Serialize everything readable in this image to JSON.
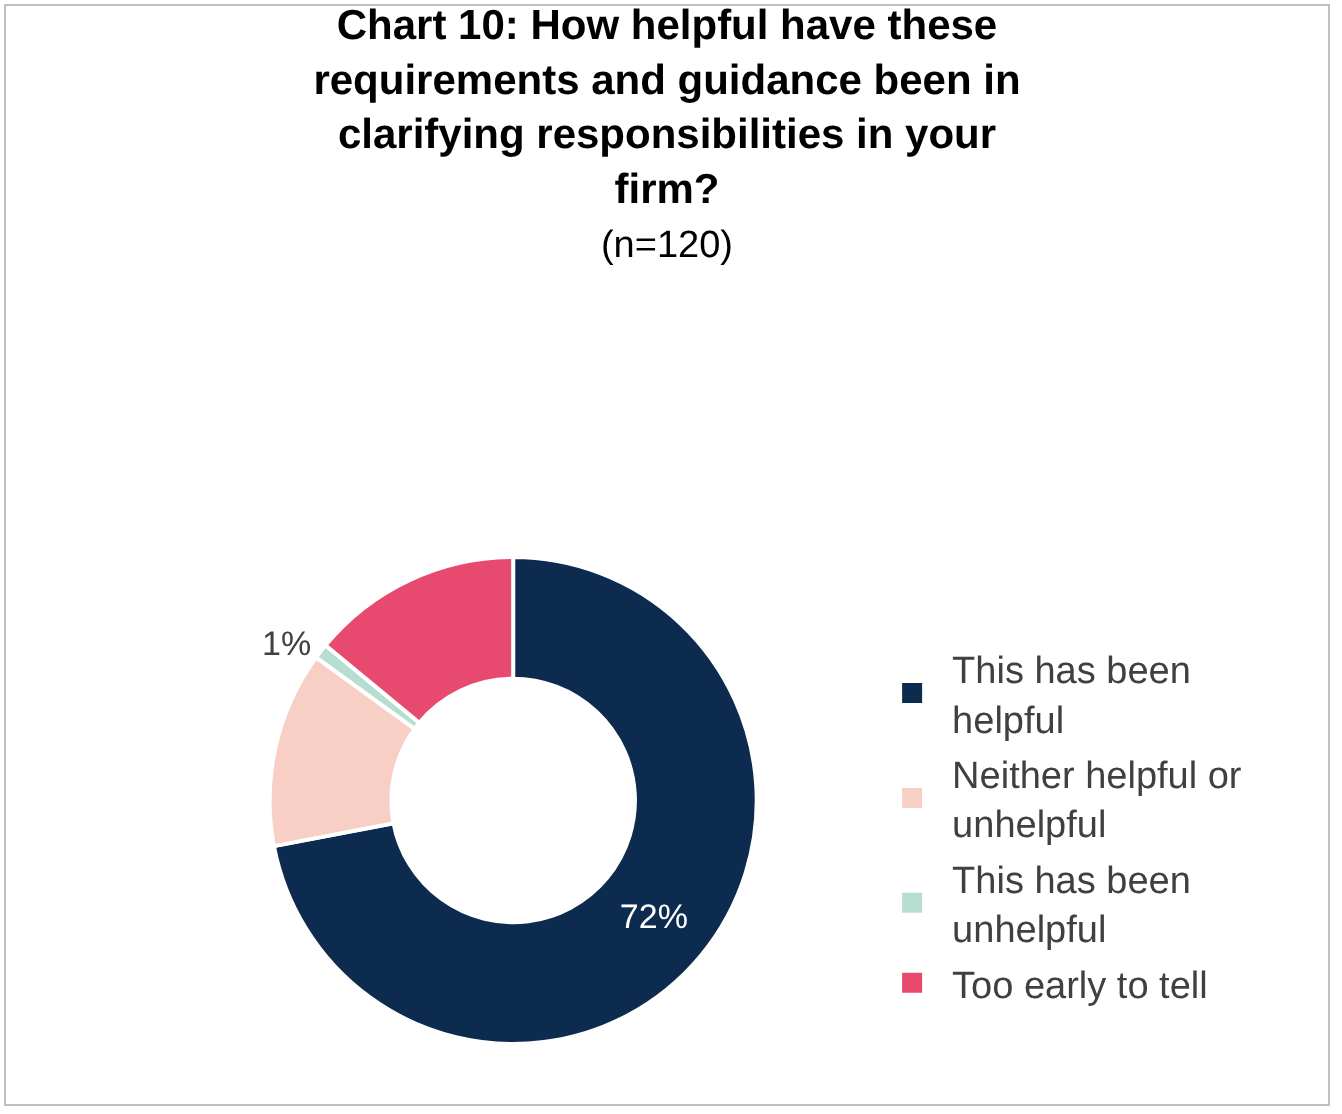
{
  "chart_data": {
    "type": "donut",
    "title": "Chart 10: How helpful have these requirements and guidance been in clarifying responsibilities in your firm?",
    "subtitle": "(n=120)",
    "categories": [
      "This has been helpful",
      "Neither helpful or unhelpful",
      "This has been unhelpful",
      "Too early to tell"
    ],
    "values": [
      72,
      13,
      1,
      14
    ],
    "colors": [
      "#0c2b4f",
      "#f8cfc4",
      "#b5ded0",
      "#e84a6f"
    ],
    "value_labels": [
      "72%",
      null,
      "1%",
      null
    ],
    "legend": "right"
  }
}
